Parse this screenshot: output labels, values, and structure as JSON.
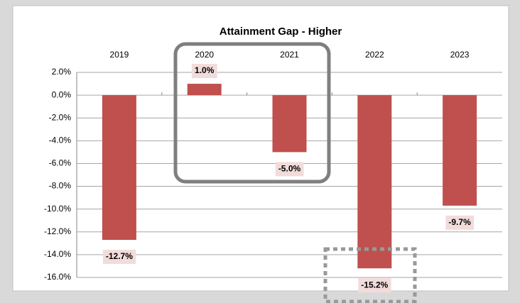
{
  "chart_data": {
    "type": "bar",
    "title": "Attainment Gap - Higher",
    "categories": [
      "2019",
      "2020",
      "2021",
      "2022",
      "2023"
    ],
    "values": [
      -12.7,
      1.0,
      -5.0,
      -15.2,
      -9.7
    ],
    "value_labels": [
      "-12.7%",
      "1.0%",
      "-5.0%",
      "-15.2%",
      "-9.7%"
    ],
    "color": "#c0504d",
    "ylim": [
      -16,
      2
    ],
    "yticks": [
      {
        "value": 2,
        "label": "2.0%"
      },
      {
        "value": 0,
        "label": "0.0%"
      },
      {
        "value": -2,
        "label": "-2.0%"
      },
      {
        "value": -4,
        "label": "-4.0%"
      },
      {
        "value": -6,
        "label": "-6.0%"
      },
      {
        "value": -8,
        "label": "-8.0%"
      },
      {
        "value": -10,
        "label": "-10.0%"
      },
      {
        "value": -12,
        "label": "-12.0%"
      },
      {
        "value": -14,
        "label": "-14.0%"
      },
      {
        "value": -16,
        "label": "-16.0%"
      }
    ],
    "grid": true
  }
}
